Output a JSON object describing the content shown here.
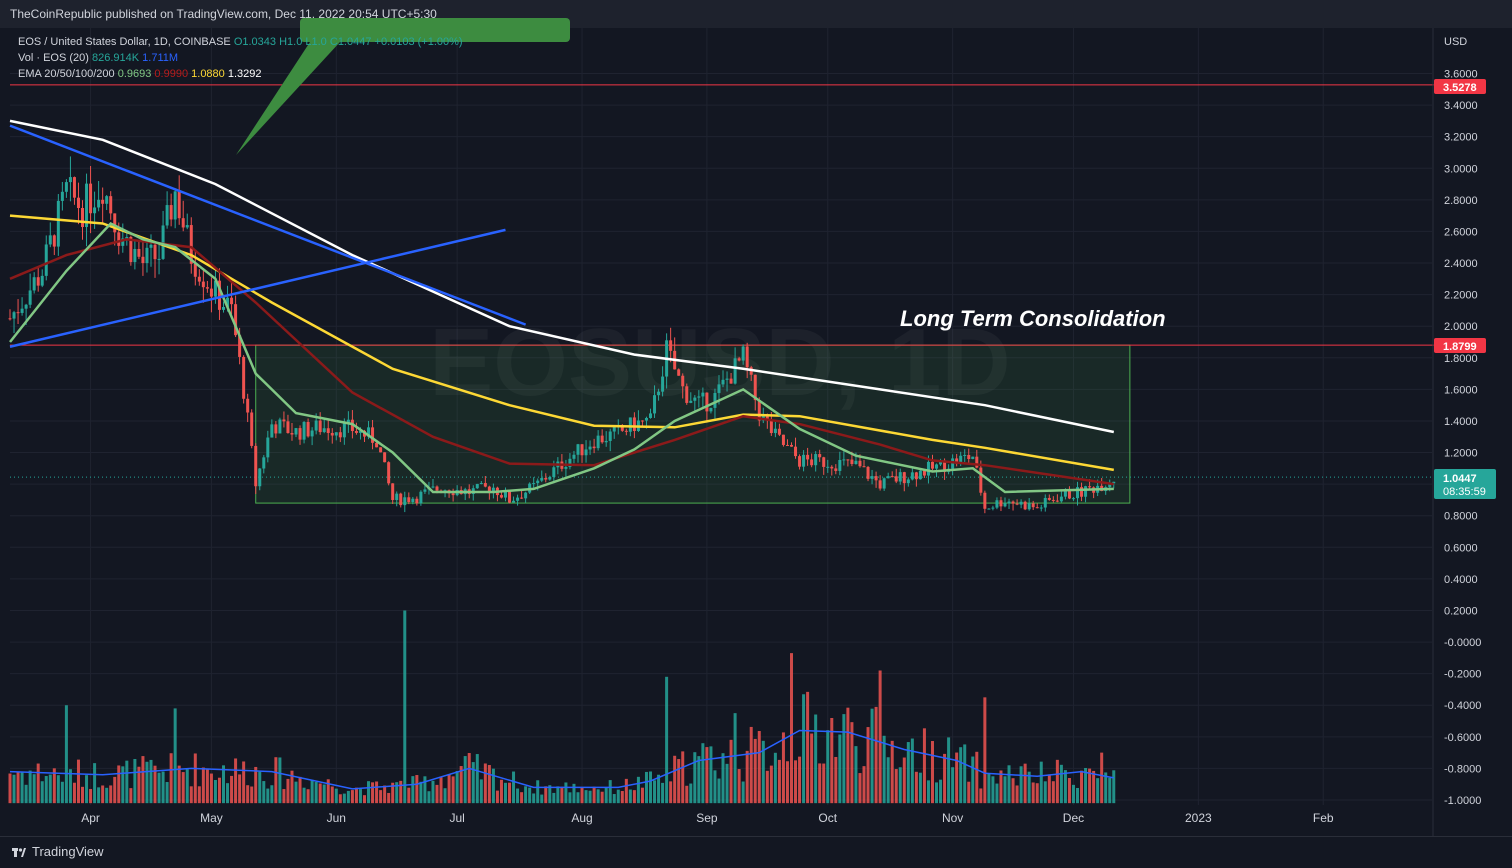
{
  "header": {
    "published": "TheCoinRepublic published on TradingView.com, Dec 11, 2022 20:54 UTC+5:30"
  },
  "legend": {
    "symbol": "EOS / United States Dollar, 1D, COINBASE",
    "open": "O1.0343",
    "high": "H1.0",
    "low": "L1.0",
    "close": "C1.0447",
    "change": "+0.0103 (+1.00%)",
    "vol_label": "Vol · EOS (20)",
    "vol_value": "826.914K",
    "vol_ma": "1.711M",
    "ema_label": "EMA 20/50/100/200",
    "ema20": "0.9693",
    "ema50": "0.9990",
    "ema100": "1.0880",
    "ema200": "1.3292"
  },
  "watermark": "EOSUSD, 1D",
  "annotation": "Long Term Consolidation",
  "price_axis": {
    "currency": "USD",
    "ticks": [
      "3.6000",
      "3.4000",
      "3.2000",
      "3.0000",
      "2.8000",
      "2.6000",
      "2.4000",
      "2.2000",
      "2.0000",
      "1.8000",
      "1.6000",
      "1.4000",
      "1.2000",
      "1.0000",
      "0.8000",
      "0.6000",
      "0.4000",
      "0.2000",
      "-0.0000",
      "-0.2000",
      "-0.4000",
      "-0.6000",
      "-0.8000",
      "-1.0000"
    ],
    "res_high": "3.5278",
    "res_mid": "1.8799",
    "last_price": "1.0447",
    "countdown": "08:35:59"
  },
  "time_axis": {
    "labels": [
      "Apr",
      "May",
      "Jun",
      "Jul",
      "Aug",
      "Sep",
      "Oct",
      "Nov",
      "Dec",
      "2023",
      "Feb"
    ]
  },
  "footer": {
    "brand": "TradingView"
  },
  "chart_data": {
    "type": "candlestick",
    "symbol": "EOS/USD",
    "timeframe": "1D",
    "xrange": [
      "2022-03-12",
      "2023-02-28"
    ],
    "ylim": [
      -1.0,
      3.65
    ],
    "horizontal_levels": [
      3.5278,
      1.8799
    ],
    "consolidation_zone": {
      "from": "2022-05-12",
      "to": "2022-12-15",
      "top": 1.88,
      "bottom": 0.88
    },
    "trendlines": [
      {
        "from": [
          "2022-03-12",
          3.27
        ],
        "to": [
          "2022-07-18",
          2.01
        ]
      },
      {
        "from": [
          "2022-03-12",
          1.87
        ],
        "to": [
          "2022-07-13",
          2.61
        ]
      }
    ],
    "price_path": [
      [
        "2022-03-12",
        2.05
      ],
      [
        "2022-03-20",
        2.35
      ],
      [
        "2022-03-26",
        2.85
      ],
      [
        "2022-03-30",
        2.75
      ],
      [
        "2022-04-04",
        2.9
      ],
      [
        "2022-04-08",
        2.6
      ],
      [
        "2022-04-14",
        2.4
      ],
      [
        "2022-04-18",
        2.45
      ],
      [
        "2022-04-22",
        2.85
      ],
      [
        "2022-04-26",
        2.45
      ],
      [
        "2022-05-02",
        2.2
      ],
      [
        "2022-05-06",
        2.1
      ],
      [
        "2022-05-09",
        1.6
      ],
      [
        "2022-05-12",
        1.0
      ],
      [
        "2022-05-16",
        1.38
      ],
      [
        "2022-05-22",
        1.33
      ],
      [
        "2022-05-28",
        1.36
      ],
      [
        "2022-06-05",
        1.35
      ],
      [
        "2022-06-11",
        1.28
      ],
      [
        "2022-06-15",
        0.9
      ],
      [
        "2022-06-21",
        0.92
      ],
      [
        "2022-06-27",
        0.98
      ],
      [
        "2022-07-04",
        0.95
      ],
      [
        "2022-07-10",
        0.98
      ],
      [
        "2022-07-14",
        0.9
      ],
      [
        "2022-07-20",
        0.98
      ],
      [
        "2022-07-28",
        1.15
      ],
      [
        "2022-08-04",
        1.28
      ],
      [
        "2022-08-10",
        1.32
      ],
      [
        "2022-08-14",
        1.38
      ],
      [
        "2022-08-18",
        1.4
      ],
      [
        "2022-08-22",
        1.85
      ],
      [
        "2022-08-26",
        1.6
      ],
      [
        "2022-08-30",
        1.5
      ],
      [
        "2022-09-03",
        1.55
      ],
      [
        "2022-09-07",
        1.7
      ],
      [
        "2022-09-10",
        1.8
      ],
      [
        "2022-09-14",
        1.45
      ],
      [
        "2022-09-18",
        1.3
      ],
      [
        "2022-09-24",
        1.15
      ],
      [
        "2022-10-01",
        1.14
      ],
      [
        "2022-10-08",
        1.12
      ],
      [
        "2022-10-14",
        1.0
      ],
      [
        "2022-10-20",
        1.05
      ],
      [
        "2022-10-27",
        1.1
      ],
      [
        "2022-11-02",
        1.15
      ],
      [
        "2022-11-06",
        1.18
      ],
      [
        "2022-11-09",
        0.85
      ],
      [
        "2022-11-14",
        0.9
      ],
      [
        "2022-11-22",
        0.85
      ],
      [
        "2022-11-27",
        0.92
      ],
      [
        "2022-12-03",
        0.95
      ],
      [
        "2022-12-08",
        1.0
      ],
      [
        "2022-12-11",
        1.04
      ]
    ],
    "ema20": [
      [
        "2022-03-12",
        1.9
      ],
      [
        "2022-03-26",
        2.35
      ],
      [
        "2022-04-06",
        2.65
      ],
      [
        "2022-04-14",
        2.55
      ],
      [
        "2022-04-22",
        2.5
      ],
      [
        "2022-05-02",
        2.3
      ],
      [
        "2022-05-12",
        1.7
      ],
      [
        "2022-05-22",
        1.45
      ],
      [
        "2022-06-05",
        1.38
      ],
      [
        "2022-06-15",
        1.2
      ],
      [
        "2022-06-25",
        0.95
      ],
      [
        "2022-07-10",
        0.95
      ],
      [
        "2022-07-20",
        0.97
      ],
      [
        "2022-08-04",
        1.1
      ],
      [
        "2022-08-14",
        1.22
      ],
      [
        "2022-08-24",
        1.4
      ],
      [
        "2022-09-10",
        1.6
      ],
      [
        "2022-09-24",
        1.35
      ],
      [
        "2022-10-08",
        1.18
      ],
      [
        "2022-10-27",
        1.08
      ],
      [
        "2022-11-06",
        1.1
      ],
      [
        "2022-11-14",
        0.95
      ],
      [
        "2022-12-11",
        0.97
      ]
    ],
    "ema50": [
      [
        "2022-03-12",
        2.3
      ],
      [
        "2022-03-26",
        2.45
      ],
      [
        "2022-04-10",
        2.55
      ],
      [
        "2022-04-26",
        2.5
      ],
      [
        "2022-05-12",
        2.15
      ],
      [
        "2022-06-05",
        1.58
      ],
      [
        "2022-06-25",
        1.3
      ],
      [
        "2022-07-14",
        1.13
      ],
      [
        "2022-08-04",
        1.12
      ],
      [
        "2022-08-24",
        1.28
      ],
      [
        "2022-09-10",
        1.43
      ],
      [
        "2022-09-24",
        1.38
      ],
      [
        "2022-10-14",
        1.25
      ],
      [
        "2022-10-27",
        1.15
      ],
      [
        "2022-11-09",
        1.12
      ],
      [
        "2022-12-11",
        1.0
      ]
    ],
    "ema100": [
      [
        "2022-03-12",
        2.7
      ],
      [
        "2022-04-04",
        2.65
      ],
      [
        "2022-04-26",
        2.45
      ],
      [
        "2022-05-16",
        2.15
      ],
      [
        "2022-06-15",
        1.73
      ],
      [
        "2022-07-14",
        1.5
      ],
      [
        "2022-08-04",
        1.37
      ],
      [
        "2022-08-24",
        1.36
      ],
      [
        "2022-09-10",
        1.44
      ],
      [
        "2022-09-24",
        1.43
      ],
      [
        "2022-10-27",
        1.28
      ],
      [
        "2022-11-09",
        1.23
      ],
      [
        "2022-12-11",
        1.09
      ]
    ],
    "ema200": [
      [
        "2022-03-12",
        3.3
      ],
      [
        "2022-04-04",
        3.18
      ],
      [
        "2022-05-02",
        2.9
      ],
      [
        "2022-06-05",
        2.45
      ],
      [
        "2022-07-14",
        2.0
      ],
      [
        "2022-08-14",
        1.82
      ],
      [
        "2022-09-10",
        1.73
      ],
      [
        "2022-10-14",
        1.6
      ],
      [
        "2022-11-09",
        1.5
      ],
      [
        "2022-12-11",
        1.33
      ]
    ],
    "volume_ma_path": [
      [
        "2022-03-12",
        -0.82
      ],
      [
        "2022-04-04",
        -0.84
      ],
      [
        "2022-04-26",
        -0.8
      ],
      [
        "2022-05-16",
        -0.82
      ],
      [
        "2022-06-05",
        -0.93
      ],
      [
        "2022-06-21",
        -0.9
      ],
      [
        "2022-07-04",
        -0.8
      ],
      [
        "2022-07-20",
        -0.92
      ],
      [
        "2022-08-10",
        -0.92
      ],
      [
        "2022-08-18",
        -0.88
      ],
      [
        "2022-08-30",
        -0.75
      ],
      [
        "2022-09-14",
        -0.7
      ],
      [
        "2022-09-24",
        -0.56
      ],
      [
        "2022-10-06",
        -0.57
      ],
      [
        "2022-10-20",
        -0.68
      ],
      [
        "2022-11-02",
        -0.75
      ],
      [
        "2022-11-09",
        -0.83
      ],
      [
        "2022-11-22",
        -0.85
      ],
      [
        "2022-12-03",
        -0.82
      ],
      [
        "2022-12-11",
        -0.86
      ]
    ],
    "volume_spikes": [
      [
        "2022-03-26",
        -0.4
      ],
      [
        "2022-04-22",
        -0.42
      ],
      [
        "2022-06-18",
        0.2
      ],
      [
        "2022-08-22",
        -0.22
      ],
      [
        "2022-09-08",
        -0.45
      ],
      [
        "2022-09-22",
        -0.07
      ],
      [
        "2022-10-14",
        -0.18
      ],
      [
        "2022-11-09",
        -0.35
      ],
      [
        "2022-12-08",
        -0.7
      ]
    ],
    "colors": {
      "up": "#26a69a",
      "down": "#ef5350",
      "ema20": "#81c784",
      "ema50": "#8b1a1a",
      "ema100": "#fdd835",
      "ema200": "#ffffff",
      "trend": "#2962ff",
      "zone": "#4caf50",
      "level": "#f23645",
      "volma": "#2962ff"
    }
  }
}
